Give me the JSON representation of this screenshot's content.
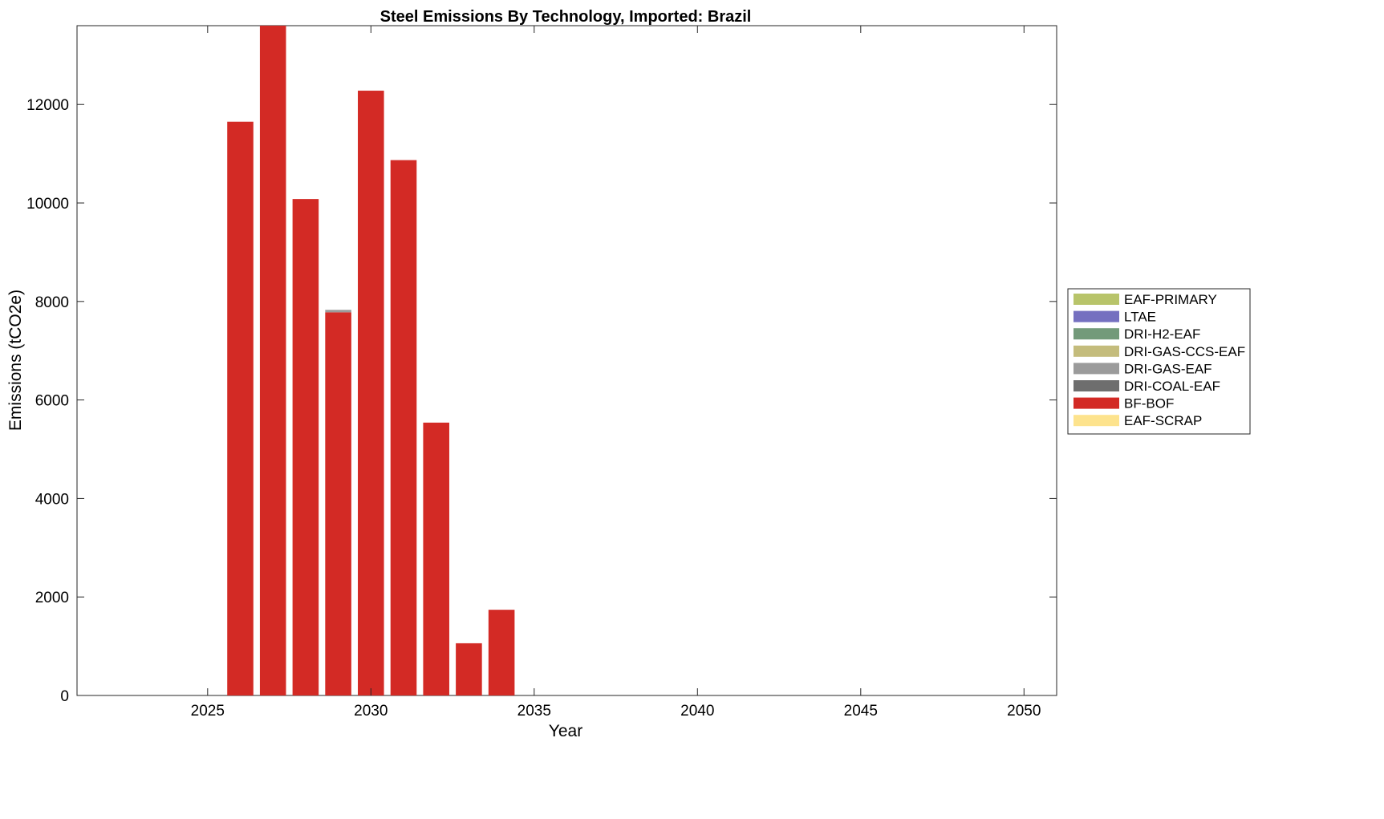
{
  "chart_data": {
    "type": "bar",
    "stacked": true,
    "title": "Steel Emissions By Technology, Imported: Brazil",
    "xlabel": "Year",
    "ylabel": "Emissions (tCO2e)",
    "xlim": [
      2021,
      2051
    ],
    "ylim": [
      0,
      13600
    ],
    "xticks": [
      2025,
      2030,
      2035,
      2040,
      2045,
      2050
    ],
    "yticks": [
      0,
      2000,
      4000,
      6000,
      8000,
      10000,
      12000
    ],
    "grid": false,
    "legend_position": "right",
    "x": [
      2026,
      2027,
      2028,
      2029,
      2030,
      2031,
      2032,
      2033,
      2034
    ],
    "series": [
      {
        "name": "EAF-PRIMARY",
        "color": "#b8c46a",
        "values": [
          0,
          0,
          0,
          0,
          0,
          0,
          0,
          0,
          0
        ]
      },
      {
        "name": "LTAE",
        "color": "#7570c0",
        "values": [
          0,
          0,
          0,
          0,
          0,
          0,
          0,
          0,
          0
        ]
      },
      {
        "name": "DRI-H2-EAF",
        "color": "#739a7a",
        "values": [
          0,
          0,
          0,
          0,
          0,
          0,
          0,
          0,
          0
        ]
      },
      {
        "name": "DRI-GAS-CCS-EAF",
        "color": "#c4bc7c",
        "values": [
          0,
          0,
          0,
          0,
          0,
          0,
          0,
          0,
          0
        ]
      },
      {
        "name": "DRI-GAS-EAF",
        "color": "#9b9b9b",
        "values": [
          0,
          0,
          0,
          50,
          0,
          0,
          0,
          0,
          0
        ]
      },
      {
        "name": "DRI-COAL-EAF",
        "color": "#6e6e6e",
        "values": [
          0,
          0,
          0,
          0,
          0,
          0,
          0,
          0,
          0
        ]
      },
      {
        "name": "BF-BOF",
        "color": "#d32a25",
        "values": [
          11650,
          13600,
          10080,
          7780,
          12280,
          10870,
          5540,
          1060,
          1740
        ]
      },
      {
        "name": "EAF-SCRAP",
        "color": "#fde38d",
        "values": [
          0,
          0,
          0,
          0,
          0,
          0,
          0,
          0,
          0
        ]
      }
    ]
  }
}
